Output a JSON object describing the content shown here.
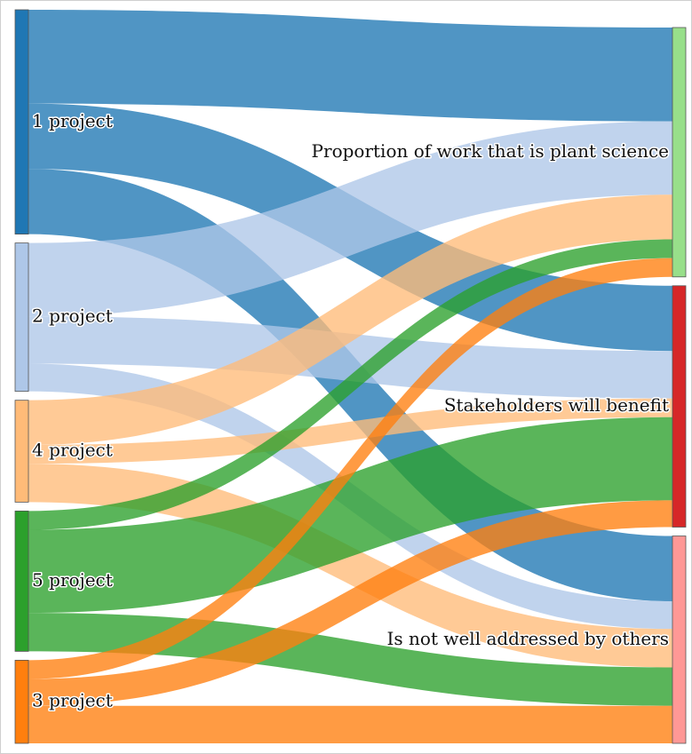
{
  "chart_data": {
    "type": "sankey",
    "sources": [
      {
        "id": "s1",
        "label": "1 project",
        "color": "#1f77b4"
      },
      {
        "id": "s2",
        "label": "2 project",
        "color": "#aec7e8"
      },
      {
        "id": "s4",
        "label": "4 project",
        "color": "#ffbb78"
      },
      {
        "id": "s5",
        "label": "5 project",
        "color": "#2ca02c"
      },
      {
        "id": "s3",
        "label": "3 project",
        "color": "#ff7f0e"
      }
    ],
    "targets": [
      {
        "id": "t1",
        "label": "Proportion of work that is plant science",
        "color": "#98df8a"
      },
      {
        "id": "t2",
        "label": "Stakeholders will benefit",
        "color": "#d62728"
      },
      {
        "id": "t3",
        "label": "Is not well addressed by others",
        "color": "#ff9896"
      }
    ],
    "links": [
      {
        "source": "s1",
        "target": "t1",
        "value": 105
      },
      {
        "source": "s1",
        "target": "t2",
        "value": 73
      },
      {
        "source": "s1",
        "target": "t3",
        "value": 73
      },
      {
        "source": "s2",
        "target": "t1",
        "value": 82
      },
      {
        "source": "s2",
        "target": "t2",
        "value": 53
      },
      {
        "source": "s2",
        "target": "t3",
        "value": 31
      },
      {
        "source": "s4",
        "target": "t1",
        "value": 50
      },
      {
        "source": "s4",
        "target": "t2",
        "value": 21
      },
      {
        "source": "s4",
        "target": "t3",
        "value": 43
      },
      {
        "source": "s5",
        "target": "t1",
        "value": 21
      },
      {
        "source": "s5",
        "target": "t2",
        "value": 93
      },
      {
        "source": "s5",
        "target": "t3",
        "value": 43
      },
      {
        "source": "s3",
        "target": "t1",
        "value": 21
      },
      {
        "source": "s3",
        "target": "t2",
        "value": 30
      },
      {
        "source": "s3",
        "target": "t3",
        "value": 42
      }
    ]
  }
}
